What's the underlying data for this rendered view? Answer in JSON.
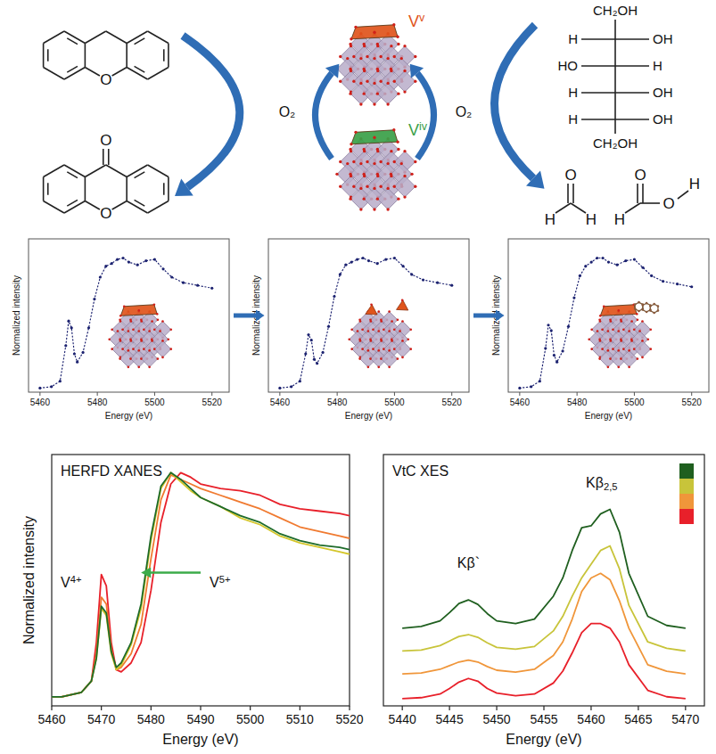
{
  "diagram": {
    "v_states": [
      {
        "text": "V",
        "sup": "v",
        "color": "#e0541b"
      },
      {
        "text": "V",
        "sup": "iv",
        "color": "#3aa048"
      }
    ],
    "oxidant": [
      "O₂",
      "O₂"
    ],
    "molecules": {
      "xanthene_atoms": [
        "O"
      ],
      "xanthone_atoms": [
        "O",
        "O"
      ],
      "sorbitol": {
        "top": "CH₂OH",
        "rows": [
          [
            "H",
            "OH"
          ],
          [
            "HO",
            "H"
          ],
          [
            "H",
            "OH"
          ],
          [
            "H",
            "OH"
          ]
        ],
        "bottom": "CH₂OH"
      },
      "formaldehyde": [
        "O",
        "H",
        "H"
      ],
      "formic_acid": [
        "O",
        "H",
        "O",
        "H"
      ]
    }
  },
  "chart_data": [
    {
      "type": "line",
      "xlabel": "Energy (eV)",
      "ylabel": "Normalized intensity",
      "x": [
        5460,
        5464,
        5467,
        5469,
        5470,
        5471,
        5472,
        5473,
        5475,
        5477,
        5479,
        5481,
        5483,
        5485,
        5487,
        5489,
        5491,
        5494,
        5497,
        5500,
        5503,
        5506,
        5510,
        5515,
        5520
      ],
      "series": [
        {
          "color": "#1c2270",
          "line_style": "dotted",
          "marker": "dot",
          "values": [
            0.01,
            0.02,
            0.06,
            0.32,
            0.5,
            0.45,
            0.26,
            0.2,
            0.27,
            0.45,
            0.66,
            0.82,
            0.9,
            0.92,
            0.95,
            0.96,
            0.93,
            0.91,
            0.94,
            0.95,
            0.88,
            0.82,
            0.78,
            0.76,
            0.74
          ]
        }
      ],
      "xlim": [
        5456,
        5526
      ],
      "ylim": [
        -0.02,
        1.1
      ],
      "xticks": [
        5460,
        5480,
        5500,
        5520
      ],
      "tick_labels": "x"
    },
    {
      "type": "line",
      "xlabel": "Energy (eV)",
      "ylabel": "Normalized intensity",
      "x": [
        5460,
        5464,
        5467,
        5469,
        5470,
        5471,
        5472,
        5473,
        5475,
        5477,
        5479,
        5481,
        5483,
        5485,
        5487,
        5489,
        5491,
        5494,
        5497,
        5500,
        5503,
        5506,
        5510,
        5515,
        5520
      ],
      "series": [
        {
          "color": "#1c2270",
          "line_style": "dotted",
          "marker": "dot",
          "values": [
            0.01,
            0.02,
            0.06,
            0.26,
            0.4,
            0.36,
            0.22,
            0.19,
            0.27,
            0.46,
            0.68,
            0.84,
            0.91,
            0.93,
            0.95,
            0.96,
            0.94,
            0.92,
            0.95,
            0.96,
            0.9,
            0.84,
            0.8,
            0.78,
            0.76
          ]
        }
      ],
      "xlim": [
        5456,
        5526
      ],
      "ylim": [
        -0.02,
        1.1
      ],
      "xticks": [
        5460,
        5480,
        5500,
        5520
      ],
      "tick_labels": "x"
    },
    {
      "type": "line",
      "xlabel": "Energy (eV)",
      "ylabel": "Normalized intensity",
      "x": [
        5460,
        5464,
        5467,
        5469,
        5470,
        5471,
        5472,
        5473,
        5475,
        5477,
        5479,
        5481,
        5483,
        5485,
        5487,
        5489,
        5491,
        5494,
        5497,
        5500,
        5503,
        5506,
        5510,
        5515,
        5520
      ],
      "series": [
        {
          "color": "#1c2270",
          "line_style": "dotted",
          "marker": "dot",
          "values": [
            0.01,
            0.02,
            0.06,
            0.3,
            0.47,
            0.43,
            0.25,
            0.2,
            0.28,
            0.46,
            0.67,
            0.83,
            0.9,
            0.93,
            0.96,
            0.96,
            0.93,
            0.91,
            0.94,
            0.95,
            0.89,
            0.83,
            0.79,
            0.77,
            0.75
          ]
        }
      ],
      "xlim": [
        5456,
        5526
      ],
      "ylim": [
        -0.02,
        1.1
      ],
      "xticks": [
        5460,
        5480,
        5500,
        5520
      ],
      "tick_labels": "x"
    },
    {
      "type": "line",
      "title": "HERFD XANES",
      "xlabel": "Energy (eV)",
      "ylabel": "Normalized intensity",
      "annotations": [
        {
          "text": "V",
          "sup": "4+"
        },
        {
          "text": "V",
          "sup": "5+"
        }
      ],
      "x": [
        5460,
        5462,
        5464,
        5466,
        5468,
        5469,
        5470,
        5471,
        5472,
        5473,
        5474,
        5476,
        5478,
        5480,
        5482,
        5484,
        5486,
        5488,
        5490,
        5494,
        5498,
        5502,
        5506,
        5510,
        5514,
        5518,
        5520
      ],
      "series": [
        {
          "color": "#e8202a",
          "values": [
            0.01,
            0.01,
            0.02,
            0.03,
            0.08,
            0.25,
            0.55,
            0.5,
            0.25,
            0.13,
            0.12,
            0.16,
            0.25,
            0.48,
            0.78,
            0.95,
            1.0,
            0.98,
            0.95,
            0.93,
            0.92,
            0.9,
            0.86,
            0.84,
            0.83,
            0.82,
            0.81
          ]
        },
        {
          "color": "#f07a30",
          "values": [
            0.01,
            0.01,
            0.02,
            0.03,
            0.08,
            0.2,
            0.45,
            0.42,
            0.22,
            0.13,
            0.14,
            0.2,
            0.33,
            0.62,
            0.88,
            0.99,
            0.97,
            0.95,
            0.93,
            0.9,
            0.87,
            0.84,
            0.8,
            0.76,
            0.74,
            0.72,
            0.71
          ]
        },
        {
          "color": "#d4c62a",
          "values": [
            0.01,
            0.01,
            0.02,
            0.03,
            0.08,
            0.18,
            0.4,
            0.37,
            0.2,
            0.13,
            0.15,
            0.24,
            0.4,
            0.7,
            0.93,
            1.0,
            0.96,
            0.92,
            0.89,
            0.85,
            0.8,
            0.77,
            0.72,
            0.69,
            0.67,
            0.65,
            0.64
          ]
        },
        {
          "color": "#1e6b2a",
          "values": [
            0.01,
            0.01,
            0.02,
            0.03,
            0.08,
            0.18,
            0.41,
            0.38,
            0.21,
            0.14,
            0.16,
            0.25,
            0.42,
            0.72,
            0.94,
            1.0,
            0.97,
            0.93,
            0.89,
            0.85,
            0.81,
            0.78,
            0.73,
            0.7,
            0.68,
            0.67,
            0.66
          ]
        }
      ],
      "xlim": [
        5460,
        5520
      ],
      "ylim": [
        -0.03,
        1.08
      ],
      "xticks": [
        5460,
        5470,
        5480,
        5490,
        5500,
        5510,
        5520
      ],
      "tick_labels": "x"
    },
    {
      "type": "line",
      "title": "VtC XES",
      "xlabel": "Energy (eV)",
      "annotations": [
        {
          "text": "Kβ`"
        },
        {
          "text": "Kβ",
          "sub": "2,5"
        }
      ],
      "x": [
        5440,
        5442,
        5444,
        5445,
        5446,
        5447,
        5448,
        5449,
        5450,
        5452,
        5454,
        5456,
        5457,
        5458,
        5459,
        5460,
        5461,
        5462,
        5463,
        5464,
        5466,
        5468,
        5470
      ],
      "series": [
        {
          "color": "#e8202a",
          "values": [
            0.08,
            0.09,
            0.13,
            0.19,
            0.26,
            0.3,
            0.27,
            0.19,
            0.14,
            0.11,
            0.13,
            0.25,
            0.38,
            0.58,
            0.8,
            0.9,
            0.9,
            0.85,
            0.7,
            0.45,
            0.17,
            0.1,
            0.08
          ]
        },
        {
          "color": "#f0963a",
          "values": [
            0.35,
            0.36,
            0.4,
            0.44,
            0.48,
            0.5,
            0.48,
            0.43,
            0.39,
            0.37,
            0.4,
            0.55,
            0.7,
            0.95,
            1.25,
            1.4,
            1.45,
            1.38,
            1.15,
            0.85,
            0.45,
            0.38,
            0.35
          ]
        },
        {
          "color": "#c8c43a",
          "values": [
            0.6,
            0.61,
            0.66,
            0.71,
            0.76,
            0.78,
            0.75,
            0.69,
            0.64,
            0.62,
            0.65,
            0.82,
            0.98,
            1.2,
            1.4,
            1.55,
            1.7,
            1.75,
            1.5,
            1.1,
            0.7,
            0.63,
            0.6
          ]
        },
        {
          "color": "#1f5f1f",
          "values": [
            0.85,
            0.87,
            0.93,
            1.02,
            1.12,
            1.16,
            1.11,
            1.01,
            0.93,
            0.9,
            0.95,
            1.2,
            1.4,
            1.7,
            1.95,
            1.97,
            2.1,
            2.15,
            1.9,
            1.45,
            0.98,
            0.88,
            0.85
          ]
        }
      ],
      "legend": "upper right",
      "xlim": [
        5438,
        5472
      ],
      "ylim": [
        0,
        2.75
      ],
      "xticks": [
        5440,
        5445,
        5450,
        5455,
        5460,
        5465,
        5470
      ],
      "tick_labels": "x"
    }
  ]
}
